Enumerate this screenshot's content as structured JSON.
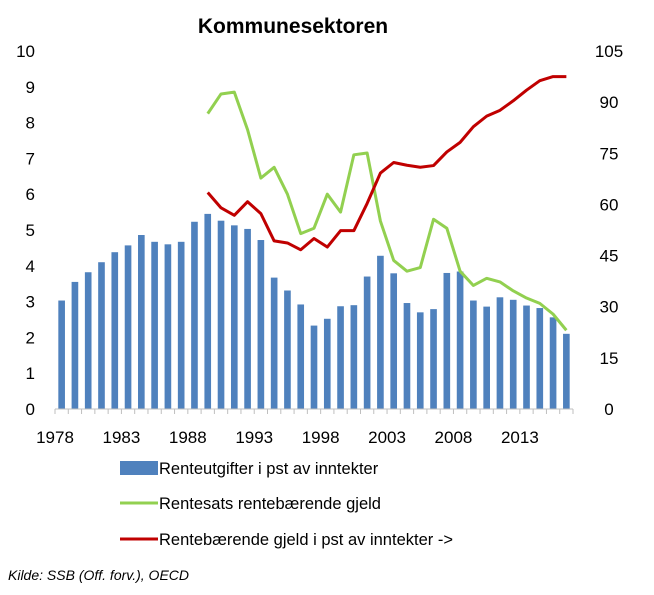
{
  "chart_data": {
    "type": "bar+line",
    "title": "Kommunesektoren",
    "source": "Kilde: SSB (Off. forv.), OECD",
    "x_tick_labels": [
      "1978",
      "1983",
      "1988",
      "1993",
      "1998",
      "2003",
      "2008",
      "2013"
    ],
    "left_axis": {
      "ylim": [
        0,
        10
      ],
      "ticks": [
        "0",
        "1",
        "2",
        "3",
        "4",
        "5",
        "6",
        "7",
        "8",
        "9",
        "10"
      ]
    },
    "right_axis": {
      "ylim": [
        0,
        105
      ],
      "ticks": [
        "0",
        "15",
        "30",
        "45",
        "60",
        "75",
        "90",
        "105"
      ]
    },
    "years": [
      1978,
      1979,
      1980,
      1981,
      1982,
      1983,
      1984,
      1985,
      1986,
      1987,
      1988,
      1989,
      1990,
      1991,
      1992,
      1993,
      1994,
      1995,
      1996,
      1997,
      1998,
      1999,
      2000,
      2001,
      2002,
      2003,
      2004,
      2005,
      2006,
      2007,
      2008,
      2009,
      2010,
      2011,
      2012,
      2013,
      2014,
      2015,
      2016
    ],
    "series": [
      {
        "name": "Renteutgifter i pst av inntekter",
        "type": "bar",
        "axis": "left",
        "color": "#4f81bd",
        "values": [
          3.03,
          3.55,
          3.82,
          4.1,
          4.38,
          4.57,
          4.86,
          4.67,
          4.6,
          4.67,
          5.23,
          5.45,
          5.26,
          5.13,
          5.03,
          4.72,
          3.67,
          3.31,
          2.92,
          2.33,
          2.52,
          2.87,
          2.9,
          3.7,
          4.28,
          3.79,
          2.96,
          2.7,
          2.79,
          3.8,
          3.84,
          3.03,
          2.86,
          3.12,
          3.05,
          2.89,
          2.82,
          2.56,
          2.1
        ]
      },
      {
        "name": "Rentesats rentebærende gjeld",
        "type": "line",
        "axis": "left",
        "color": "#92d050",
        "x": [
          1989,
          1990,
          1991,
          1992,
          1993,
          1994,
          1995,
          1996,
          1997,
          1998,
          1999,
          2000,
          2001,
          2002,
          2003,
          2004,
          2005,
          2006,
          2007,
          2008,
          2009,
          2010,
          2011,
          2012,
          2013,
          2014,
          2015,
          2016
        ],
        "values": [
          8.25,
          8.8,
          8.85,
          7.8,
          6.45,
          6.75,
          6.0,
          4.9,
          5.05,
          6.0,
          5.5,
          7.1,
          7.15,
          5.25,
          4.15,
          3.85,
          3.95,
          5.3,
          5.05,
          3.85,
          3.45,
          3.65,
          3.55,
          3.3,
          3.1,
          2.95,
          2.65,
          2.2
        ]
      },
      {
        "name": "Rentebærende gjeld i pst av inntekter ->",
        "type": "line",
        "axis": "right",
        "color": "#c00000",
        "x": [
          1989,
          1990,
          1991,
          1992,
          1993,
          1994,
          1995,
          1996,
          1997,
          1998,
          1999,
          2000,
          2001,
          2002,
          2003,
          2004,
          2005,
          2006,
          2007,
          2008,
          2009,
          2010,
          2011,
          2012,
          2013,
          2014,
          2015,
          2016
        ],
        "values": [
          63.5,
          59,
          56.8,
          60.8,
          57.3,
          49.3,
          48.7,
          46.7,
          50,
          47.5,
          52.3,
          52.3,
          60.3,
          69.2,
          72.3,
          71.5,
          70.9,
          71.4,
          75.4,
          78.2,
          82.8,
          85.9,
          87.6,
          90.4,
          93.5,
          96.3,
          97.5,
          97.5
        ]
      }
    ],
    "legend_position": "bottom",
    "grid": false
  }
}
